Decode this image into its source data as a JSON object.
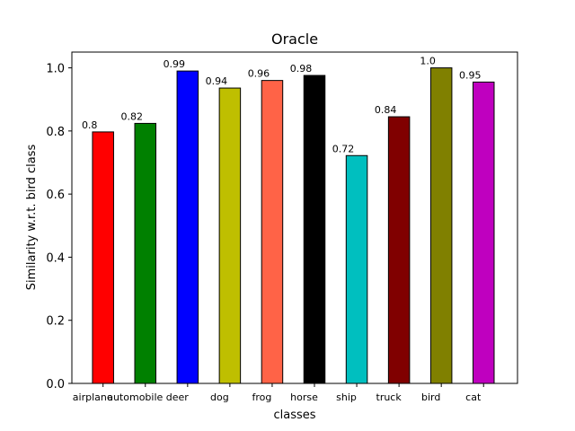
{
  "chart_data": {
    "type": "bar",
    "title": "Oracle",
    "xlabel": "classes",
    "ylabel": "Similarity w.r.t. bird class",
    "categories": [
      "airplane",
      "automobile",
      "deer",
      "dog",
      "frog",
      "horse",
      "ship",
      "truck",
      "bird",
      "cat"
    ],
    "values": [
      0.797,
      0.824,
      0.99,
      0.936,
      0.96,
      0.976,
      0.722,
      0.845,
      1.0,
      0.955
    ],
    "data_labels": [
      "0.8",
      "0.82",
      "0.99",
      "0.94",
      "0.96",
      "0.98",
      "0.72",
      "0.84",
      "1.0",
      "0.95"
    ],
    "colors": [
      "#ff0000",
      "#008000",
      "#0000ff",
      "#bfbf00",
      "#ff6347",
      "#000000",
      "#00bfbf",
      "#800000",
      "#808000",
      "#bf00bf"
    ],
    "ylim": [
      0,
      1.05
    ],
    "yticks": [
      "0.0",
      "0.2",
      "0.4",
      "0.6",
      "0.8",
      "1.0"
    ],
    "ytick_values": [
      0.0,
      0.2,
      0.4,
      0.6,
      0.8,
      1.0
    ],
    "grid": false,
    "legend": "none"
  }
}
